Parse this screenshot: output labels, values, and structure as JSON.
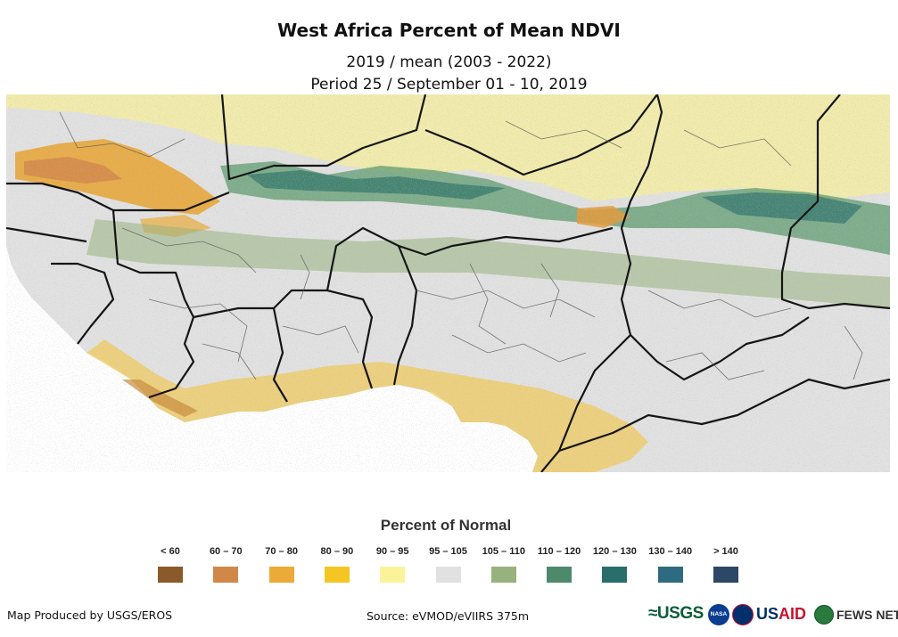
{
  "title": "West Africa Percent of Mean NDVI",
  "subtitle_line1": "2019 / mean (2003 - 2022)",
  "subtitle_line2": "Period 25 / September 01 - 10, 2019",
  "legend": {
    "title": "Percent of Normal",
    "items": [
      {
        "label": "< 60",
        "color": "#8b5a2b"
      },
      {
        "label": "60 – 70",
        "color": "#d2874a"
      },
      {
        "label": "70 – 80",
        "color": "#ebab38"
      },
      {
        "label": "80 – 90",
        "color": "#f5c623"
      },
      {
        "label": "90 – 95",
        "color": "#fbf39a"
      },
      {
        "label": "95 – 105",
        "color": "#e1e1e1"
      },
      {
        "label": "105 – 110",
        "color": "#97b27e"
      },
      {
        "label": "110 – 120",
        "color": "#4c8a6b"
      },
      {
        "label": "120 – 130",
        "color": "#2a6e6c"
      },
      {
        "label": "130 – 140",
        "color": "#2e6b80"
      },
      {
        "label": "> 140",
        "color": "#2d4766"
      }
    ]
  },
  "footer": {
    "produced_by": "Map Produced by USGS/EROS",
    "source": "Source: eVMOD/eVIIRS 375m"
  },
  "logos": {
    "usgs": "≈USGS",
    "nasa": "NASA",
    "usaid_prefix": "US",
    "usaid_suffix": "AID",
    "fewsnet": "FEWS NET"
  }
}
